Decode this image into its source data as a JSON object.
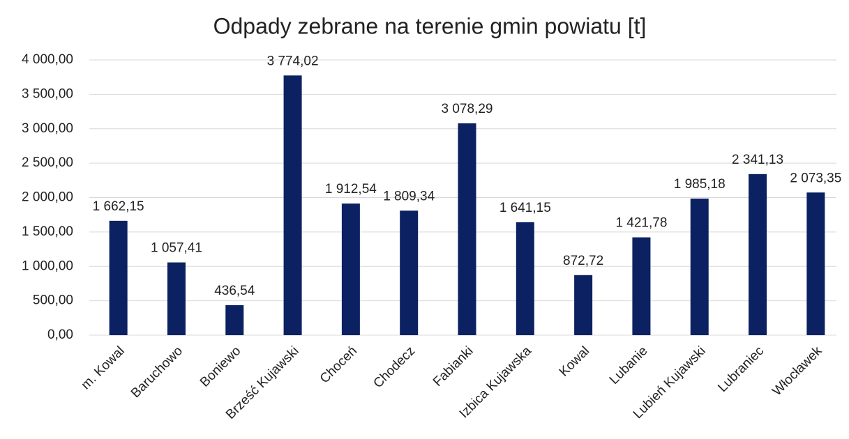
{
  "chart_data": {
    "type": "bar",
    "title": "Odpady zebrane na terenie gmin powiatu [t]",
    "categories": [
      "m. Kowal",
      "Baruchowo",
      "Boniewo",
      "Brześć Kujawski",
      "Choceń",
      "Chodecz",
      "Fabianki",
      "Izbica Kujawska",
      "Kowal",
      "Lubanie",
      "Lubień Kujawski",
      "Lubraniec",
      "Włocławek"
    ],
    "values": [
      1662.15,
      1057.41,
      436.54,
      3774.02,
      1912.54,
      1809.34,
      3078.29,
      1641.15,
      872.72,
      1421.78,
      1985.18,
      2341.13,
      2073.35
    ],
    "value_labels": [
      "1 662,15",
      "1 057,41",
      "436,54",
      "3 774,02",
      "1 912,54",
      "1 809,34",
      "3 078,29",
      "1 641,15",
      "872,72",
      "1 421,78",
      "1 985,18",
      "2 341,13",
      "2 073,35"
    ],
    "color": "#0b2161",
    "ylim": [
      0,
      4000
    ],
    "yticks": [
      {
        "value": 0,
        "label": "0,00"
      },
      {
        "value": 500,
        "label": "500,00"
      },
      {
        "value": 1000,
        "label": "1 000,00"
      },
      {
        "value": 1500,
        "label": "1 500,00"
      },
      {
        "value": 2000,
        "label": "2 000,00"
      },
      {
        "value": 2500,
        "label": "2 500,00"
      },
      {
        "value": 3000,
        "label": "3 000,00"
      },
      {
        "value": 3500,
        "label": "3 500,00"
      },
      {
        "value": 4000,
        "label": "4 000,00"
      }
    ],
    "grid": true
  }
}
